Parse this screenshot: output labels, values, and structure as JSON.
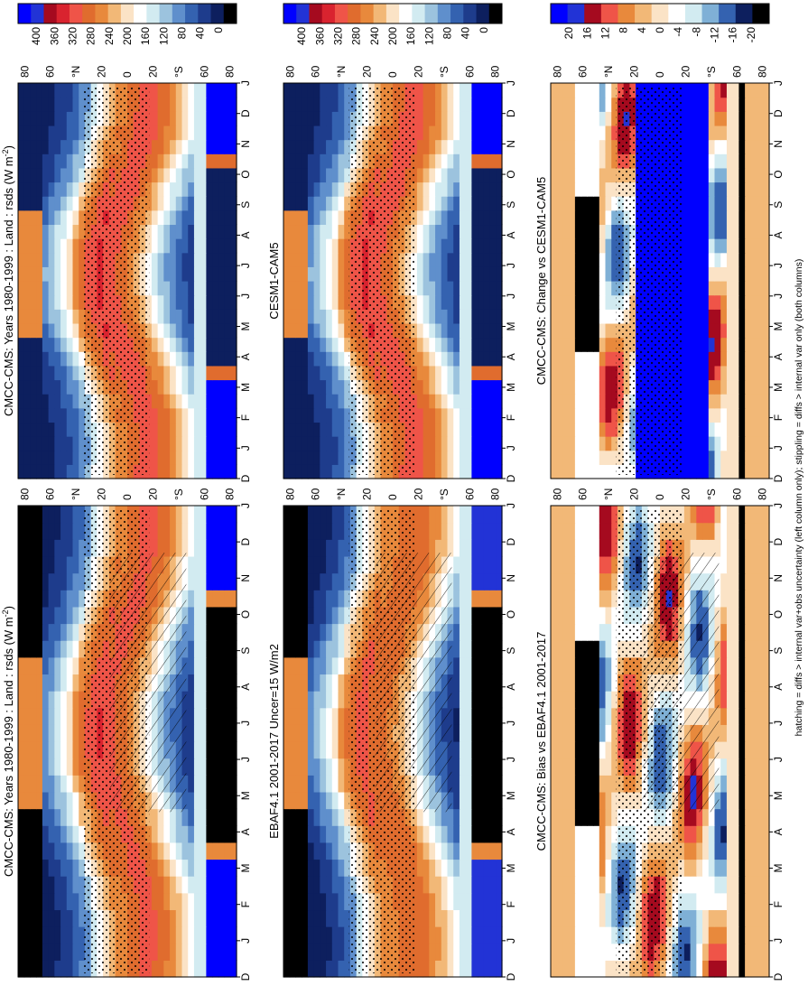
{
  "orientation_note": "rotated 90 degrees counter-clockwise",
  "footnote": "hatching = diffs > internal var+obs uncertainty (left column only); stippling = diffs > internal var only (both columns)",
  "chart_data": [
    {
      "type": "heatmap",
      "panel": "top-left",
      "title": "CMCC-CMS: Years 1980-1999 : Land : rsds (W m",
      "title_sup": "-2",
      "title_end": ")",
      "x_ticks": [
        "D",
        "J",
        "F",
        "M",
        "A",
        "M",
        "J",
        "J",
        "A",
        "S",
        "O",
        "N",
        "D",
        "J"
      ],
      "y_ticks": [
        "80",
        "60",
        "°N",
        "20",
        "0",
        "20",
        "°S",
        "60",
        "80"
      ],
      "colorbar_ticks": [
        "400",
        "360",
        "320",
        "280",
        "240",
        "200",
        "160",
        "120",
        "80",
        "40",
        "0"
      ],
      "colorbar_range": [
        0,
        440
      ],
      "overlay": "hatching and stippling",
      "colormap": "full"
    },
    {
      "type": "heatmap",
      "panel": "top-right",
      "title": "CMCC-CMS: Years 1980-1999 : Land : rsds (W m",
      "title_sup": "-2",
      "title_end": ")",
      "x_ticks": [
        "D",
        "J",
        "F",
        "M",
        "A",
        "M",
        "J",
        "J",
        "A",
        "S",
        "O",
        "N",
        "D",
        "J"
      ],
      "y_ticks": [
        "80",
        "60",
        "°N",
        "20",
        "0",
        "20",
        "°S",
        "60",
        "80"
      ],
      "colorbar_ticks": [
        "400",
        "360",
        "320",
        "280",
        "240",
        "200",
        "160",
        "120",
        "80",
        "40",
        "0"
      ],
      "colorbar_range": [
        0,
        440
      ],
      "overlay": "stippling",
      "colormap": "full"
    },
    {
      "type": "heatmap",
      "panel": "middle-left",
      "title": "EBAF4.1 2001-2017 Uncer=15 W/m2",
      "x_ticks": [
        "D",
        "J",
        "F",
        "M",
        "A",
        "M",
        "J",
        "J",
        "A",
        "S",
        "O",
        "N",
        "D",
        "J"
      ],
      "y_ticks": [
        "80",
        "60",
        "°N",
        "20",
        "0",
        "20",
        "°S",
        "60",
        "80"
      ],
      "colorbar_ticks": [
        "400",
        "360",
        "320",
        "280",
        "240",
        "200",
        "160",
        "120",
        "80",
        "40",
        "0"
      ],
      "colorbar_range": [
        0,
        440
      ],
      "overlay": "hatching and stippling",
      "colormap": "full"
    },
    {
      "type": "heatmap",
      "panel": "middle-right",
      "title": "CESM1-CAM5",
      "x_ticks": [
        "D",
        "J",
        "F",
        "M",
        "A",
        "M",
        "J",
        "J",
        "A",
        "S",
        "O",
        "N",
        "D",
        "J"
      ],
      "y_ticks": [
        "80",
        "60",
        "°N",
        "20",
        "0",
        "20",
        "°S",
        "60",
        "80"
      ],
      "colorbar_ticks": [
        "400",
        "360",
        "320",
        "280",
        "240",
        "200",
        "160",
        "120",
        "80",
        "40",
        "0"
      ],
      "colorbar_range": [
        0,
        440
      ],
      "overlay": "stippling",
      "colormap": "full"
    },
    {
      "type": "heatmap",
      "panel": "bottom-left",
      "title": "CMCC-CMS: Bias vs EBAF4.1 2001-2017",
      "x_ticks": [
        "D",
        "J",
        "F",
        "M",
        "A",
        "M",
        "J",
        "J",
        "A",
        "S",
        "O",
        "N",
        "D",
        "J"
      ],
      "y_ticks": [
        "80",
        "60",
        "°N",
        "20",
        "0",
        "20",
        "°S",
        "60",
        "80"
      ],
      "colorbar_ticks": [
        "20",
        "16",
        "12",
        "8",
        "4",
        "0",
        "-4",
        "-8",
        "-12",
        "-16",
        "-20"
      ],
      "colorbar_range": [
        -24,
        24
      ],
      "overlay": "hatching and stippling",
      "colormap": "diff"
    },
    {
      "type": "heatmap",
      "panel": "bottom-right",
      "title": "CMCC-CMS: Change vs CESM1-CAM5",
      "x_ticks": [
        "D",
        "J",
        "F",
        "M",
        "A",
        "M",
        "J",
        "J",
        "A",
        "S",
        "O",
        "N",
        "D",
        "J"
      ],
      "y_ticks": [
        "80",
        "60",
        "°N",
        "20",
        "0",
        "20",
        "°S",
        "60",
        "80"
      ],
      "colorbar_ticks": [
        "20",
        "16",
        "12",
        "8",
        "4",
        "0",
        "-4",
        "-8",
        "-12",
        "-16",
        "-20"
      ],
      "colorbar_range": [
        -24,
        24
      ],
      "overlay": "stippling",
      "colormap": "diff"
    }
  ]
}
